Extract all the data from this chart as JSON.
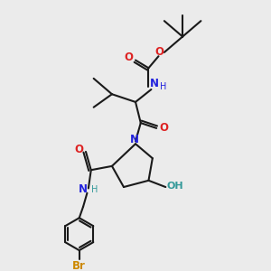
{
  "background_color": "#ebebeb",
  "bond_color": "#1a1a1a",
  "N_color": "#2222dd",
  "O_color": "#dd2222",
  "Br_color": "#cc8800",
  "OH_color": "#339999",
  "line_width": 1.5,
  "figsize": [
    3.0,
    3.0
  ],
  "dpi": 100,
  "xlim": [
    0,
    10
  ],
  "ylim": [
    0,
    10
  ]
}
